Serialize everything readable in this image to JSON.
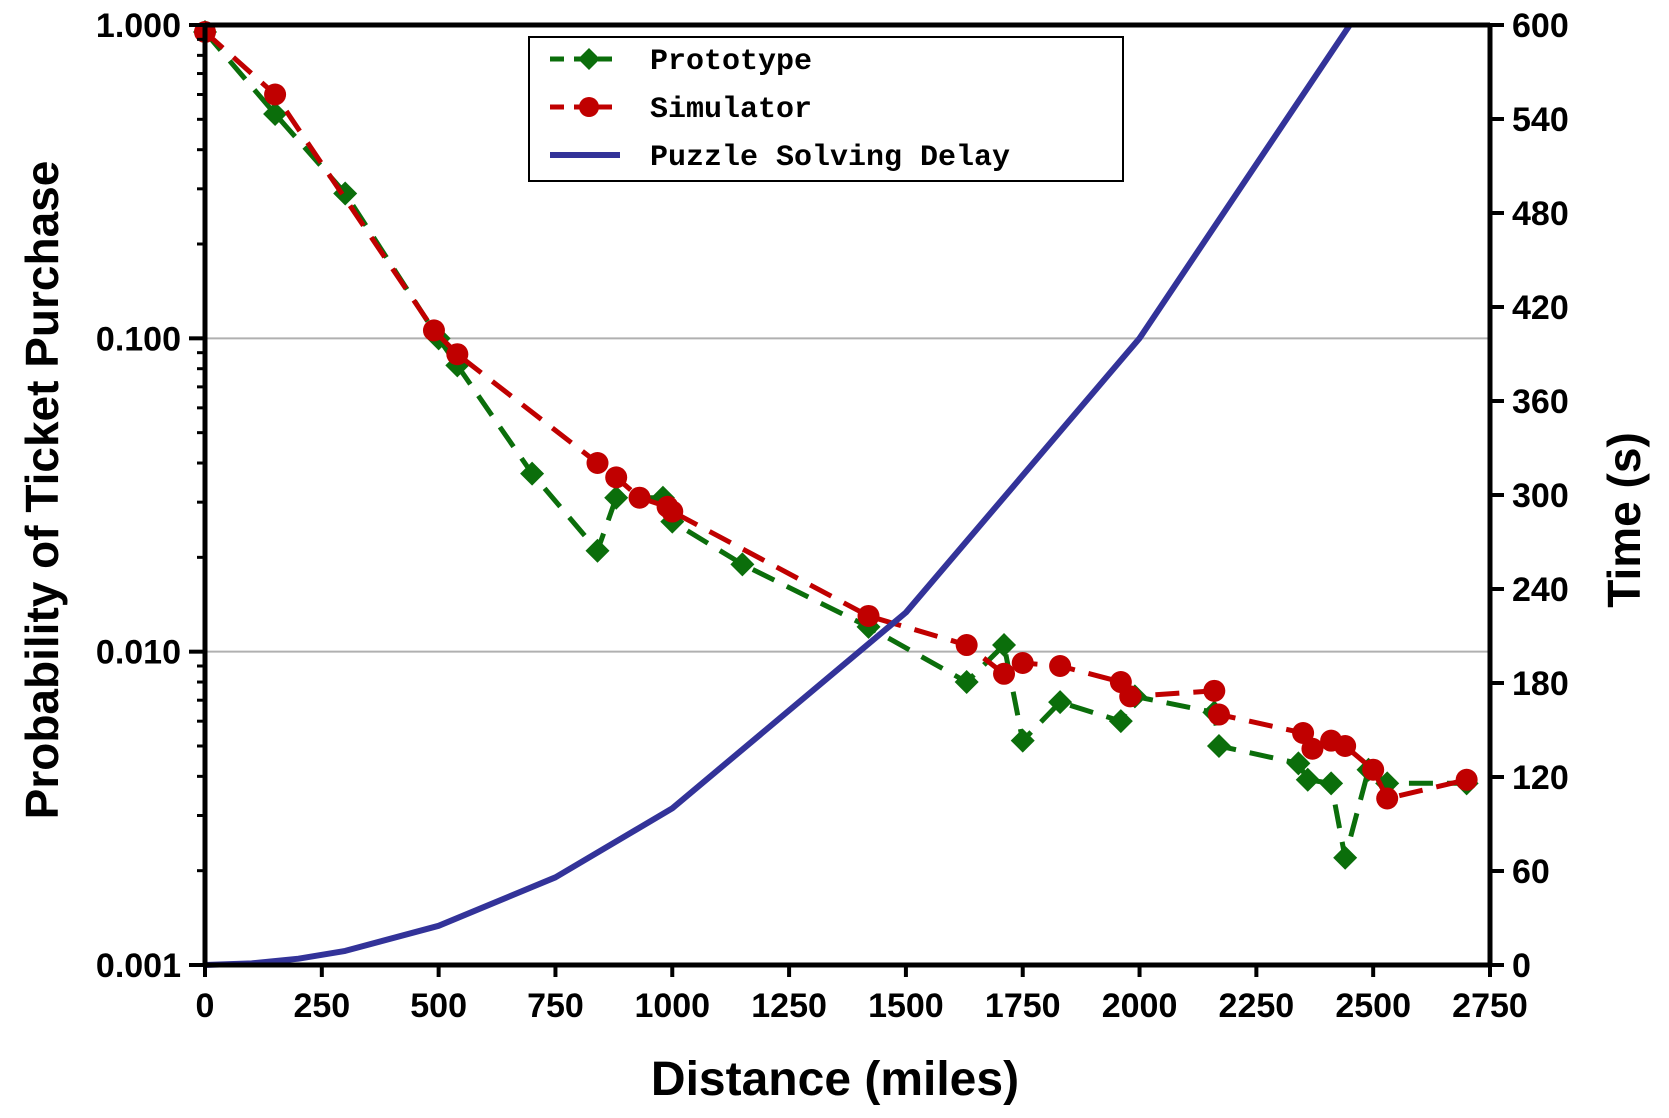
{
  "chart_data": {
    "type": "line",
    "xlabel": "Distance (miles)",
    "ylabel": "Probability of Ticket Purchase",
    "y2label": "Time (s)",
    "xlim": [
      0,
      2750
    ],
    "ylim": [
      0.001,
      1.0
    ],
    "yscale": "log",
    "y2lim": [
      0,
      600
    ],
    "x_ticks": [
      "0",
      "250",
      "500",
      "750",
      "1000",
      "1250",
      "1500",
      "1750",
      "2000",
      "2250",
      "2500",
      "2750"
    ],
    "y_ticks": [
      "1.000",
      "0.100",
      "0.010",
      "0.001"
    ],
    "y2_ticks": [
      "600",
      "540",
      "480",
      "420",
      "360",
      "300",
      "240",
      "180",
      "120",
      "60",
      "0"
    ],
    "grid": "horizontal at 0.100 and 0.010",
    "legend_position": "top-center",
    "series": [
      {
        "name": "Prototype",
        "axis": "left",
        "color": "#0b6e0b",
        "marker": "diamond",
        "line": "dashed",
        "points": [
          [
            0,
            0.95
          ],
          [
            150,
            0.52
          ],
          [
            300,
            0.29
          ],
          [
            500,
            0.1
          ],
          [
            540,
            0.082
          ],
          [
            700,
            0.037
          ],
          [
            840,
            0.021
          ],
          [
            880,
            0.031
          ],
          [
            980,
            0.031
          ],
          [
            1000,
            0.026
          ],
          [
            1150,
            0.019
          ],
          [
            1420,
            0.012
          ],
          [
            1630,
            0.008
          ],
          [
            1710,
            0.0105
          ],
          [
            1750,
            0.0052
          ],
          [
            1830,
            0.0069
          ],
          [
            1960,
            0.006
          ],
          [
            1990,
            0.0072
          ],
          [
            2160,
            0.0064
          ],
          [
            2170,
            0.005
          ],
          [
            2340,
            0.0044
          ],
          [
            2360,
            0.0039
          ],
          [
            2410,
            0.0038
          ],
          [
            2440,
            0.0022
          ],
          [
            2490,
            0.0042
          ],
          [
            2530,
            0.0038
          ],
          [
            2700,
            0.0038
          ]
        ]
      },
      {
        "name": "Simulator",
        "axis": "left",
        "color": "#c00000",
        "marker": "circle",
        "line": "dashed",
        "points": [
          [
            0,
            0.95
          ],
          [
            150,
            0.6
          ],
          [
            490,
            0.106
          ],
          [
            540,
            0.089
          ],
          [
            840,
            0.04
          ],
          [
            880,
            0.036
          ],
          [
            930,
            0.031
          ],
          [
            990,
            0.029
          ],
          [
            1000,
            0.028
          ],
          [
            1420,
            0.013
          ],
          [
            1630,
            0.0105
          ],
          [
            1710,
            0.0085
          ],
          [
            1750,
            0.0092
          ],
          [
            1830,
            0.009
          ],
          [
            1960,
            0.008
          ],
          [
            1980,
            0.0072
          ],
          [
            2160,
            0.0075
          ],
          [
            2170,
            0.0063
          ],
          [
            2350,
            0.0055
          ],
          [
            2370,
            0.0049
          ],
          [
            2410,
            0.0052
          ],
          [
            2440,
            0.005
          ],
          [
            2500,
            0.0042
          ],
          [
            2530,
            0.0034
          ],
          [
            2700,
            0.0039
          ]
        ]
      },
      {
        "name": "Puzzle Solving Delay",
        "axis": "right",
        "color": "#333399",
        "marker": "none",
        "line": "solid",
        "points": [
          [
            0,
            0
          ],
          [
            100,
            1
          ],
          [
            200,
            4
          ],
          [
            300,
            9
          ],
          [
            500,
            25
          ],
          [
            750,
            56
          ],
          [
            1000,
            100
          ],
          [
            1500,
            225
          ],
          [
            2000,
            400
          ],
          [
            2450,
            600
          ]
        ]
      }
    ]
  }
}
